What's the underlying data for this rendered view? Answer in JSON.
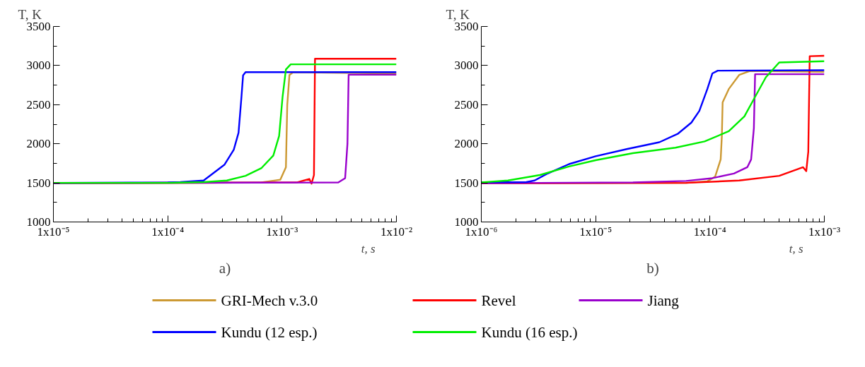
{
  "chart_data": [
    {
      "type": "line",
      "title": "a)",
      "xlabel": "t, s",
      "ylabel": "T, K",
      "log": "x",
      "xlim": [
        1e-05,
        0.01
      ],
      "ylim": [
        1000,
        3500
      ],
      "xticks": [
        {
          "value": 1e-05,
          "label": "1x10⁻⁵"
        },
        {
          "value": 0.0001,
          "label": "1x10⁻⁴"
        },
        {
          "value": 0.001,
          "label": "1x10⁻³"
        },
        {
          "value": 0.01,
          "label": "1x10⁻²"
        }
      ],
      "yticks": [
        1000,
        1500,
        2000,
        2500,
        3000,
        3500
      ],
      "grid": false,
      "legend": "bottom",
      "marker": "none",
      "line_style": "solid",
      "series": [
        {
          "name": "GRI-Mech v.3.0",
          "color": "#cc9933",
          "x": [
            1e-05,
            0.000661,
            0.000964,
            0.00108,
            0.00111,
            0.00116,
            0.00125,
            0.01
          ],
          "values": [
            1495,
            1505,
            1540,
            1700,
            2500,
            2880,
            2916,
            2897
          ]
        },
        {
          "name": "Revel",
          "color": "#ff0000",
          "x": [
            1e-05,
            0.00134,
            0.00173,
            0.00181,
            0.0019,
            0.00194,
            0.01
          ],
          "values": [
            1495,
            1505,
            1550,
            1490,
            1600,
            3087,
            3087
          ]
        },
        {
          "name": "Jiang",
          "color": "#9900cc",
          "x": [
            1e-05,
            0.0031,
            0.00356,
            0.00373,
            0.00382,
            0.01
          ],
          "values": [
            1497,
            1505,
            1560,
            2000,
            2883,
            2883
          ]
        },
        {
          "name": "Kundu (12 esp.)",
          "color": "#0000ff",
          "x": [
            1e-05,
            0.0001,
            0.000129,
            0.000206,
            0.000314,
            0.000378,
            0.000416,
            0.00044,
            0.000456,
            0.000479,
            0.01
          ],
          "values": [
            1500,
            1505,
            1510,
            1530,
            1734,
            1924,
            2141,
            2576,
            2875,
            2916,
            2916
          ]
        },
        {
          "name": "Kundu (16 esp.)",
          "color": "#00ee00",
          "x": [
            1e-05,
            0.0001,
            0.000206,
            0.000329,
            0.000479,
            0.000661,
            0.000838,
            0.000942,
            0.00101,
            0.00108,
            0.00119,
            0.01
          ],
          "values": [
            1500,
            1500,
            1510,
            1530,
            1590,
            1690,
            1850,
            2100,
            2600,
            2950,
            3016,
            3016
          ]
        }
      ]
    },
    {
      "type": "line",
      "title": "b)",
      "xlabel": "t, s",
      "ylabel": "T, K",
      "log": "x",
      "xlim": [
        1e-06,
        0.001
      ],
      "ylim": [
        1000,
        3500
      ],
      "xticks": [
        {
          "value": 1e-06,
          "label": "1x10⁻⁶"
        },
        {
          "value": 1e-05,
          "label": "1x10⁻⁵"
        },
        {
          "value": 0.0001,
          "label": "1x10⁻⁴"
        },
        {
          "value": 0.001,
          "label": "1x10⁻³"
        }
      ],
      "yticks": [
        1000,
        1500,
        2000,
        2500,
        3000,
        3500
      ],
      "grid": false,
      "marker": "none",
      "line_style": "solid",
      "series": [
        {
          "color": "#cc9933",
          "x": [
            1e-06,
            6.18e-05,
            9.48e-05,
            0.000111,
            0.000124,
            0.000127,
            0.000129,
            0.000146,
            0.00018,
            0.000223,
            0.001
          ],
          "values": [
            1495,
            1500,
            1520,
            1580,
            1800,
            2100,
            2530,
            2700,
            2880,
            2930,
            2920
          ]
        },
        {
          "color": "#ff0000",
          "x": [
            1e-06,
            6.18e-05,
            0.00018,
            0.000403,
            0.000652,
            0.000695,
            0.000724,
            0.000745,
            0.001
          ],
          "values": [
            1495,
            1500,
            1530,
            1590,
            1700,
            1650,
            1900,
            3120,
            3125
          ]
        },
        {
          "color": "#9900cc",
          "x": [
            1e-06,
            2.12e-05,
            6.18e-05,
            0.000105,
            0.000162,
            0.000212,
            0.000229,
            0.000242,
            0.000248,
            0.001
          ],
          "values": [
            1497,
            1505,
            1525,
            1560,
            1620,
            1700,
            1800,
            2200,
            2890,
            2890
          ]
        },
        {
          "color": "#0000ff",
          "x": [
            1e-06,
            2.48e-06,
            2.92e-06,
            3.81e-06,
            5.85e-06,
            1e-05,
            1.9e-05,
            3.61e-05,
            5.26e-05,
            6.87e-05,
            8.07e-05,
            9.48e-05,
            0.000105,
            0.000117,
            0.001
          ],
          "values": [
            1507,
            1510,
            1530,
            1620,
            1740,
            1841,
            1934,
            2020,
            2130,
            2270,
            2420,
            2700,
            2900,
            2935,
            2940
          ]
        },
        {
          "color": "#00ee00",
          "x": [
            1e-06,
            1.71e-06,
            3.25e-06,
            5.85e-06,
            1e-05,
            2.12e-05,
            4.99e-05,
            8.97e-05,
            0.000146,
            0.0002,
            0.000248,
            0.000308,
            0.000403,
            0.001
          ],
          "values": [
            1507,
            1530,
            1600,
            1710,
            1790,
            1880,
            1950,
            2030,
            2160,
            2350,
            2600,
            2850,
            3040,
            3055
          ]
        }
      ]
    }
  ]
}
